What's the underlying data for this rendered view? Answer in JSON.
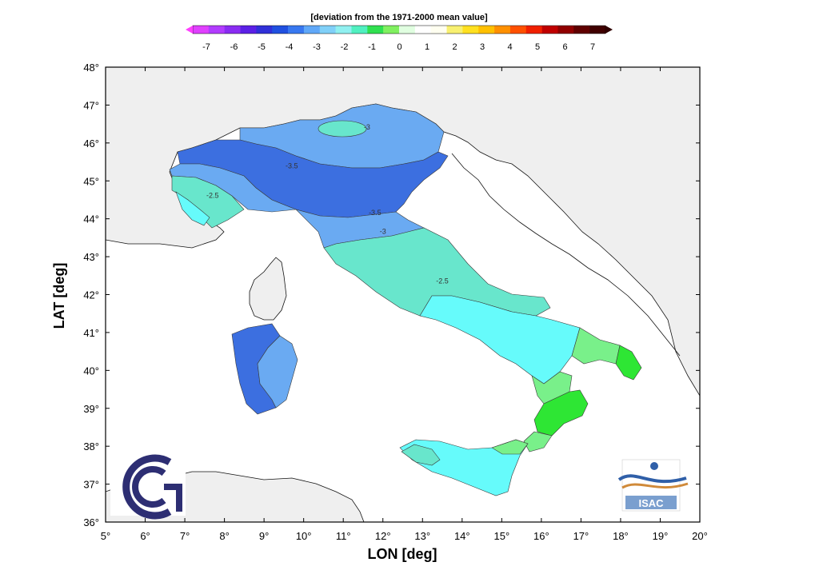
{
  "colorbar": {
    "title": "[deviation from the 1971-2000 mean value]",
    "labels": [
      "-7",
      "-6",
      "-5",
      "-4",
      "-3",
      "-2",
      "-1",
      "0",
      "1",
      "2",
      "3",
      "4",
      "5",
      "6",
      "7"
    ],
    "colors": [
      "#e040ff",
      "#b23cff",
      "#8a2cf2",
      "#5b20e6",
      "#3030d8",
      "#2050e0",
      "#3878f0",
      "#60a8f8",
      "#80d0f8",
      "#90f0f0",
      "#50f0c0",
      "#30e050",
      "#80f060",
      "#e0ffe0",
      "#ffffff",
      "#fffff0",
      "#f8f070",
      "#ffe020",
      "#ffc000",
      "#ff9000",
      "#ff5000",
      "#f02000",
      "#c00000",
      "#900000",
      "#600000",
      "#400000"
    ],
    "min_arrow_color": "#ff40ff",
    "max_arrow_color": "#300000"
  },
  "axes": {
    "x_title": "LON [deg]",
    "y_title": "LAT [deg]",
    "x_ticks": [
      "5°",
      "6°",
      "7°",
      "8°",
      "9°",
      "10°",
      "11°",
      "12°",
      "13°",
      "14°",
      "15°",
      "16°",
      "17°",
      "18°",
      "19°",
      "20°"
    ],
    "y_ticks": [
      "48°",
      "47°",
      "46°",
      "45°",
      "44°",
      "43°",
      "42°",
      "41°",
      "40°",
      "39°",
      "38°",
      "37°",
      "36°"
    ],
    "lon_range": [
      5,
      20
    ],
    "lat_range": [
      36,
      48
    ]
  },
  "contours": [
    {
      "label": "-3",
      "lon": 11.6,
      "lat": 46.35
    },
    {
      "label": "-3.5",
      "lon": 9.7,
      "lat": 45.33
    },
    {
      "label": "-3.5",
      "lon": 11.8,
      "lat": 44.1
    },
    {
      "label": "-3",
      "lon": 12.0,
      "lat": 43.6
    },
    {
      "label": "-2.5",
      "lon": 7.7,
      "lat": 44.55
    },
    {
      "label": "-2.5",
      "lon": 13.5,
      "lat": 42.3
    }
  ],
  "logos": {
    "right_text": "ISAC"
  },
  "region_colors": {
    "neg_3_5": "#3c6fe0",
    "neg_3": "#6aaaf2",
    "neg_2_5": "#68e6cc",
    "neg_2": "#66fbfb",
    "neg_1_5": "#79f08a",
    "neg_1": "#2ee634",
    "land": "#efefef"
  }
}
